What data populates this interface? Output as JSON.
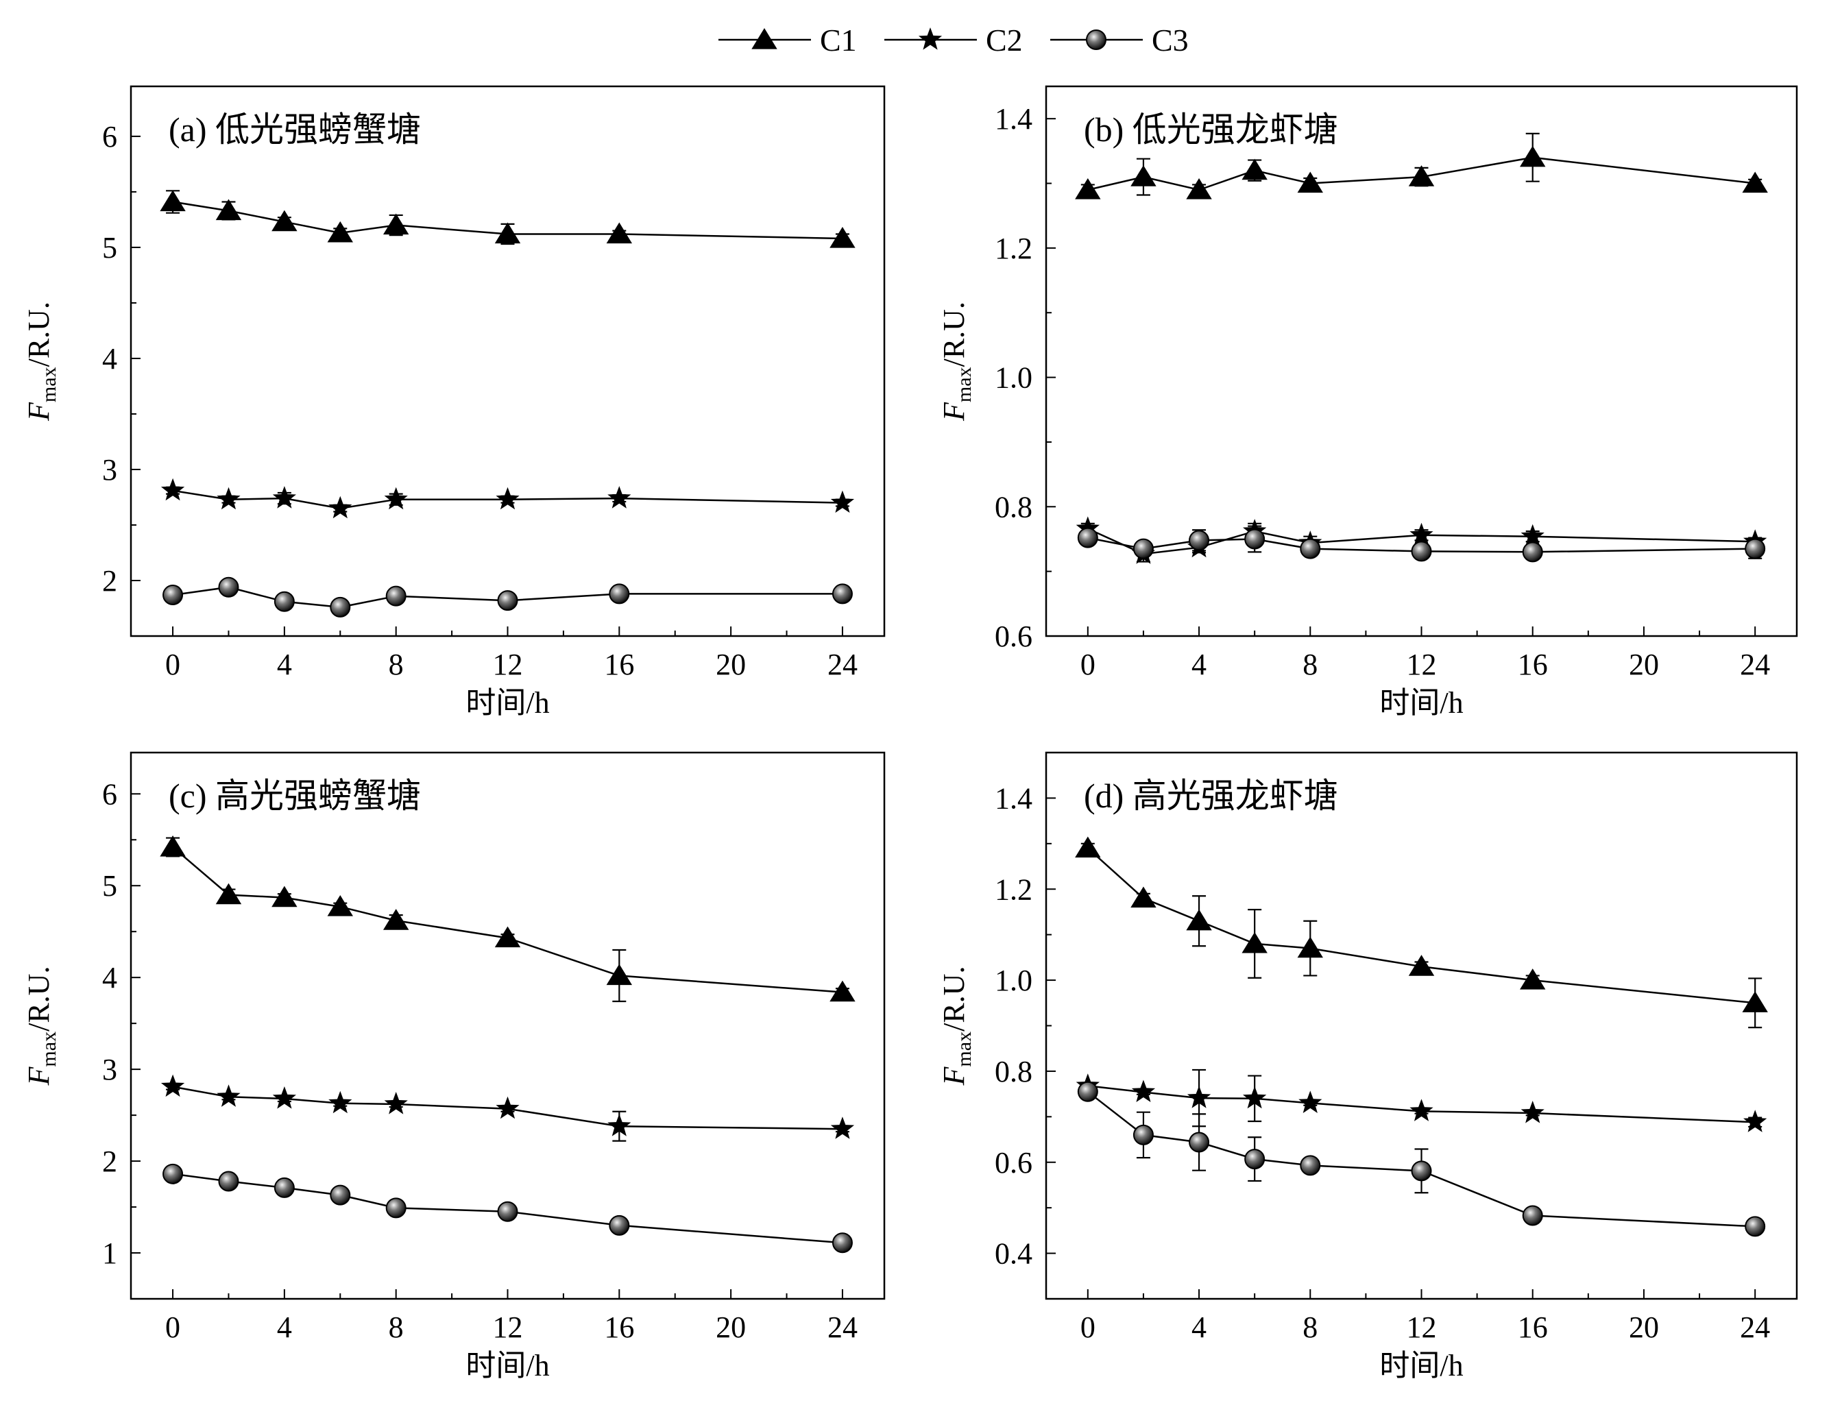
{
  "legend": {
    "placement": "top-center",
    "entries": [
      {
        "label": "C1",
        "marker": "triangle"
      },
      {
        "label": "C2",
        "marker": "star"
      },
      {
        "label": "C3",
        "marker": "sphere"
      }
    ]
  },
  "chart_data": [
    {
      "type": "line",
      "title": "(a) 低光强螃蟹塘",
      "xlabel": "时间/h",
      "ylabel_main": "F",
      "ylabel_sub": "max",
      "ylabel_unit": "/R.U.",
      "xlim": [
        -1.5,
        25.5
      ],
      "ylim": [
        1.5,
        6.45
      ],
      "xticks": [
        0,
        4,
        8,
        12,
        16,
        20,
        24
      ],
      "yticks": [
        2,
        3,
        4,
        5,
        6
      ],
      "x": [
        0,
        2,
        4,
        6,
        8,
        12,
        16,
        24
      ],
      "series": [
        {
          "name": "C1",
          "marker": "triangle",
          "values": [
            5.41,
            5.33,
            5.23,
            5.13,
            5.2,
            5.12,
            5.12,
            5.08
          ],
          "errors": [
            0.1,
            0.08,
            0.04,
            0.04,
            0.09,
            0.09,
            0.03,
            0.04
          ]
        },
        {
          "name": "C2",
          "marker": "star",
          "values": [
            2.81,
            2.73,
            2.74,
            2.65,
            2.73,
            2.73,
            2.74,
            2.7
          ],
          "errors": [
            0.03,
            0.03,
            0.05,
            0.03,
            0.05,
            0.03,
            0.03,
            0.03
          ]
        },
        {
          "name": "C3",
          "marker": "sphere",
          "values": [
            1.87,
            1.94,
            1.81,
            1.76,
            1.86,
            1.82,
            1.88,
            1.88
          ],
          "errors": [
            0.03,
            0.04,
            0.03,
            0.03,
            0.05,
            0.03,
            0.03,
            0.03
          ]
        }
      ]
    },
    {
      "type": "line",
      "title": "(b) 低光强龙虾塘",
      "xlabel": "时间/h",
      "ylabel_main": "F",
      "ylabel_sub": "max",
      "ylabel_unit": "/R.U.",
      "xlim": [
        -1.5,
        25.5
      ],
      "ylim": [
        0.6,
        1.45
      ],
      "xticks": [
        0,
        4,
        8,
        12,
        16,
        20,
        24
      ],
      "yticks": [
        0.6,
        0.8,
        1.0,
        1.2,
        1.4
      ],
      "x": [
        0,
        2,
        4,
        6,
        8,
        12,
        16,
        24
      ],
      "series": [
        {
          "name": "C1",
          "marker": "triangle",
          "values": [
            1.29,
            1.31,
            1.29,
            1.32,
            1.3,
            1.31,
            1.34,
            1.3
          ],
          "errors": [
            0.008,
            0.028,
            0.008,
            0.016,
            0.008,
            0.014,
            0.037,
            0.006
          ]
        },
        {
          "name": "C2",
          "marker": "star",
          "values": [
            0.766,
            0.727,
            0.737,
            0.762,
            0.744,
            0.756,
            0.754,
            0.746
          ],
          "errors": [
            0.008,
            0.012,
            0.008,
            0.012,
            0.01,
            0.008,
            0.008,
            0.006
          ]
        },
        {
          "name": "C3",
          "marker": "sphere",
          "values": [
            0.752,
            0.735,
            0.748,
            0.75,
            0.735,
            0.731,
            0.73,
            0.735
          ],
          "errors": [
            0.008,
            0.01,
            0.016,
            0.02,
            0.01,
            0.008,
            0.01,
            0.015
          ]
        }
      ]
    },
    {
      "type": "line",
      "title": "(c) 高光强螃蟹塘",
      "xlabel": "时间/h",
      "ylabel_main": "F",
      "ylabel_sub": "max",
      "ylabel_unit": "/R.U.",
      "xlim": [
        -1.5,
        25.5
      ],
      "ylim": [
        0.5,
        6.45
      ],
      "xticks": [
        0,
        4,
        8,
        12,
        16,
        20,
        24
      ],
      "yticks": [
        1,
        2,
        3,
        4,
        5,
        6
      ],
      "x": [
        0,
        2,
        4,
        6,
        8,
        12,
        16,
        24
      ],
      "series": [
        {
          "name": "C1",
          "marker": "triangle",
          "values": [
            5.42,
            4.9,
            4.87,
            4.77,
            4.62,
            4.43,
            4.02,
            3.84
          ],
          "errors": [
            0.1,
            0.06,
            0.04,
            0.04,
            0.06,
            0.04,
            0.28,
            0.04
          ]
        },
        {
          "name": "C2",
          "marker": "star",
          "values": [
            2.81,
            2.7,
            2.68,
            2.63,
            2.62,
            2.57,
            2.38,
            2.35
          ],
          "errors": [
            0.03,
            0.03,
            0.03,
            0.03,
            0.03,
            0.03,
            0.16,
            0.03
          ]
        },
        {
          "name": "C3",
          "marker": "sphere",
          "values": [
            1.86,
            1.78,
            1.71,
            1.63,
            1.49,
            1.45,
            1.3,
            1.11
          ],
          "errors": [
            0.03,
            0.03,
            0.03,
            0.03,
            0.03,
            0.03,
            0.03,
            0.03
          ]
        }
      ]
    },
    {
      "type": "line",
      "title": "(d) 高光强龙虾塘",
      "xlabel": "时间/h",
      "ylabel_main": "F",
      "ylabel_sub": "max",
      "ylabel_unit": "/R.U.",
      "xlim": [
        -1.5,
        25.5
      ],
      "ylim": [
        0.3,
        1.5
      ],
      "xticks": [
        0,
        4,
        8,
        12,
        16,
        20,
        24
      ],
      "yticks": [
        0.4,
        0.6,
        0.8,
        1.0,
        1.2,
        1.4
      ],
      "x": [
        0,
        2,
        4,
        6,
        8,
        12,
        16,
        24
      ],
      "series": [
        {
          "name": "C1",
          "marker": "triangle",
          "values": [
            1.29,
            1.18,
            1.13,
            1.08,
            1.07,
            1.03,
            1.0,
            0.95
          ],
          "errors": [
            0.01,
            0.01,
            0.055,
            0.075,
            0.06,
            0.01,
            0.01,
            0.054
          ]
        },
        {
          "name": "C2",
          "marker": "star",
          "values": [
            0.768,
            0.754,
            0.741,
            0.74,
            0.73,
            0.712,
            0.708,
            0.688
          ],
          "errors": [
            0.005,
            0.005,
            0.062,
            0.05,
            0.005,
            0.005,
            0.005,
            0.01
          ]
        },
        {
          "name": "C3",
          "marker": "sphere",
          "values": [
            0.755,
            0.66,
            0.644,
            0.607,
            0.593,
            0.581,
            0.483,
            0.459
          ],
          "errors": [
            0.01,
            0.05,
            0.062,
            0.048,
            0.01,
            0.048,
            0.01,
            0.01
          ]
        }
      ]
    }
  ]
}
